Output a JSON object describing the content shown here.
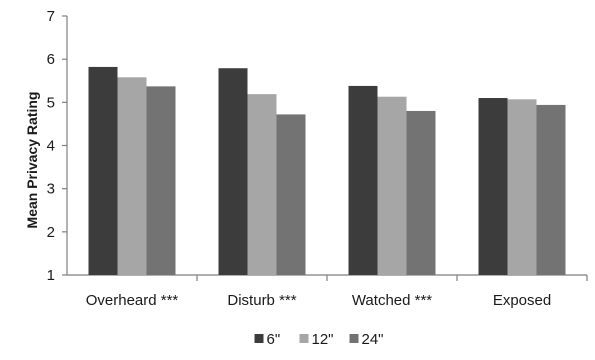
{
  "chart_data": {
    "type": "bar",
    "title": "",
    "xlabel": "",
    "ylabel": "Mean Privacy Rating",
    "ylim": [
      1,
      7
    ],
    "yticks": [
      1,
      2,
      3,
      4,
      5,
      6,
      7
    ],
    "grid": false,
    "legend_position": "bottom",
    "categories": [
      "Overheard ***",
      "Disturb ***",
      "Watched ***",
      "Exposed"
    ],
    "series": [
      {
        "name": "6\"",
        "color": "#3c3c3c",
        "values": [
          5.82,
          5.79,
          5.38,
          5.1
        ]
      },
      {
        "name": "12\"",
        "color": "#a6a6a6",
        "values": [
          5.58,
          5.19,
          5.13,
          5.07
        ]
      },
      {
        "name": "24\"",
        "color": "#737373",
        "values": [
          5.37,
          4.72,
          4.8,
          4.94
        ]
      }
    ]
  }
}
